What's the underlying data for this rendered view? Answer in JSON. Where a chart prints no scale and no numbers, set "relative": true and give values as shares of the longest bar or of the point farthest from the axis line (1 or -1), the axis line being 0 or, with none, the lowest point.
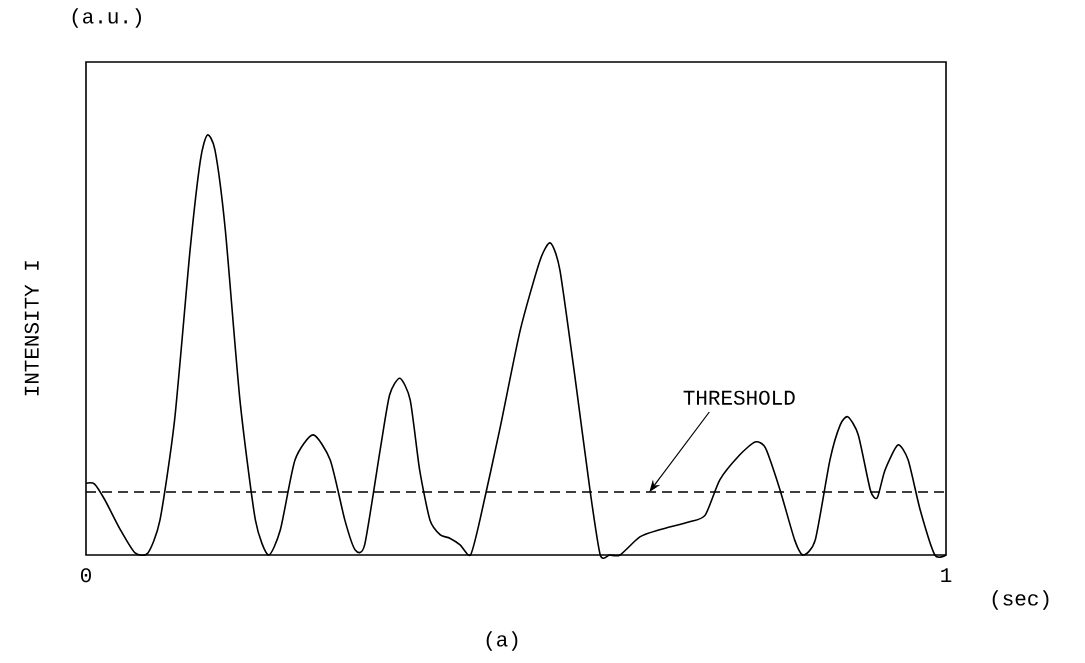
{
  "chart_data": {
    "type": "line",
    "ylabel": "INTENSITY I",
    "xlabel": "(sec)",
    "relative": true,
    "xlim": [
      0,
      1
    ],
    "xticks": [
      0,
      1
    ],
    "marker": "none",
    "line_style": "solid",
    "x": [
      0,
      0.01,
      0.022,
      0.04,
      0.057,
      0.072,
      0.086,
      0.103,
      0.121,
      0.133,
      0.141,
      0.15,
      0.162,
      0.179,
      0.197,
      0.212,
      0.226,
      0.243,
      0.264,
      0.284,
      0.301,
      0.313,
      0.324,
      0.342,
      0.353,
      0.365,
      0.377,
      0.388,
      0.4,
      0.412,
      0.423,
      0.435,
      0.447,
      0.458,
      0.481,
      0.505,
      0.528,
      0.54,
      0.551,
      0.569,
      0.586,
      0.598,
      0.609,
      0.621,
      0.644,
      0.667,
      0.702,
      0.72,
      0.737,
      0.76,
      0.778,
      0.79,
      0.807,
      0.824,
      0.834,
      0.848,
      0.865,
      0.877,
      0.886,
      0.898,
      0.912,
      0.92,
      0.929,
      0.944,
      0.956,
      0.97,
      0.987,
      1
    ],
    "series": [
      {
        "color": "#000000",
        "values": [
          0.171,
          0.169,
          0.131,
          0.06,
          0.005,
          0.005,
          0.083,
          0.321,
          0.726,
          0.94,
          1,
          0.964,
          0.774,
          0.369,
          0.083,
          0,
          0.06,
          0.226,
          0.286,
          0.226,
          0.083,
          0.012,
          0.024,
          0.25,
          0.381,
          0.421,
          0.369,
          0.202,
          0.083,
          0.048,
          0.04,
          0.024,
          0,
          0.083,
          0.298,
          0.536,
          0.702,
          0.743,
          0.679,
          0.417,
          0.155,
          0,
          0,
          0,
          0.043,
          0.06,
          0.079,
          0.095,
          0.179,
          0.238,
          0.269,
          0.255,
          0.155,
          0.036,
          0,
          0.036,
          0.226,
          0.31,
          0.329,
          0.286,
          0.155,
          0.136,
          0.202,
          0.262,
          0.226,
          0.107,
          0,
          0
        ]
      }
    ],
    "ref_lines": [
      {
        "axis": "y",
        "value": 0.15,
        "color": "#000000",
        "line_style": "dashed"
      }
    ],
    "annotations": [
      {
        "text": "THRESHOLD",
        "x": 0.655,
        "y": 0.15
      },
      "(a.u.)",
      "(a)"
    ]
  }
}
